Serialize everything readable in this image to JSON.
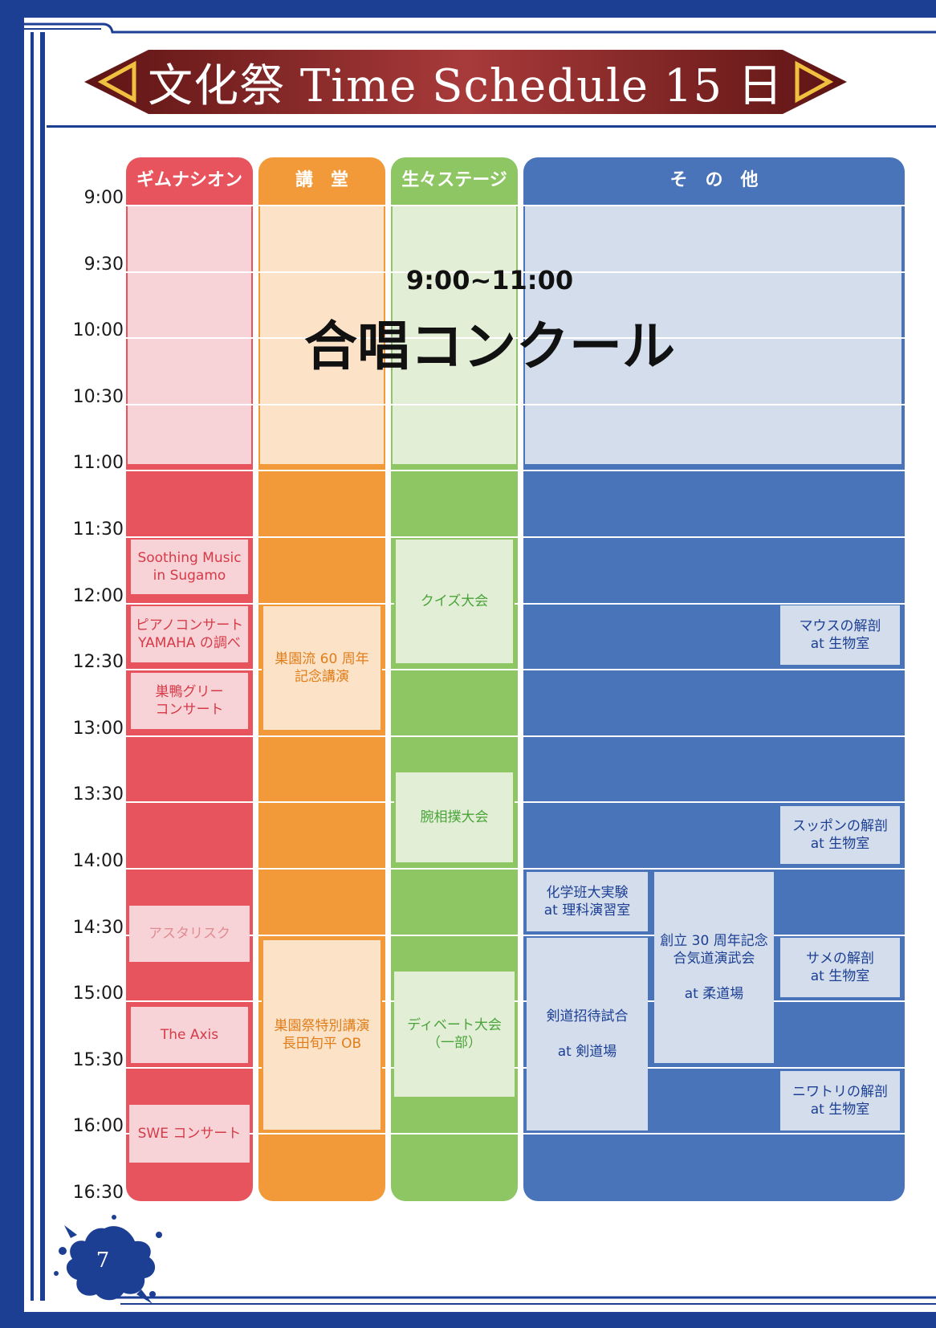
{
  "title": "文化祭 Time Schedule 15 日",
  "page_number": "7",
  "columns": {
    "gym": "ギムナシオン",
    "hall": "講　堂",
    "stage": "生々ステージ",
    "other": "そ　の　他"
  },
  "times": [
    "9:00",
    "9:30",
    "10:00",
    "10:30",
    "11:00",
    "11:30",
    "12:00",
    "12:30",
    "13:00",
    "13:30",
    "14:00",
    "14:30",
    "15:00",
    "15:30",
    "16:00",
    "16:30"
  ],
  "chorus": {
    "time": "9:00~11:00",
    "title": "合唱コンクール"
  },
  "events": {
    "gym_1": [
      "Soothing Music",
      "in Sugamo"
    ],
    "gym_2": [
      "ピアノコンサート",
      "YAMAHA の調べ"
    ],
    "gym_3": [
      "巣鴨グリー",
      "コンサート"
    ],
    "gym_4": [
      "アスタリスク"
    ],
    "gym_5": [
      "The Axis"
    ],
    "gym_6": [
      "SWE コンサート"
    ],
    "hall_1": [
      "巣園流 60 周年",
      "記念講演"
    ],
    "hall_2": [
      "巣園祭特別講演",
      "長田旬平 OB"
    ],
    "stage_1": [
      "クイズ大会"
    ],
    "stage_2": [
      "腕相撲大会"
    ],
    "stage_3": [
      "ディベート大会",
      "（一部）"
    ],
    "other_mouse": [
      "マウスの解剖",
      "at 生物室"
    ],
    "other_turtle": [
      "スッポンの解剖",
      "at 生物室"
    ],
    "other_chem": [
      "化学班大実験",
      "at 理科演習室"
    ],
    "other_aikido": [
      "創立 30 周年記念",
      "合気道演武会",
      "",
      "at 柔道場"
    ],
    "other_shark": [
      "サメの解剖",
      "at 生物室"
    ],
    "other_kendo": [
      "剣道招待試合",
      "",
      "at 剣道場"
    ],
    "other_chicken": [
      "ニワトリの解剖",
      "at 生物室"
    ]
  },
  "colors": {
    "frame": "#1c3f94",
    "gym": "#e8545e",
    "hall": "#f2993a",
    "stage": "#8dc663",
    "other": "#4a74b9",
    "banner": "#7a1c1c"
  }
}
